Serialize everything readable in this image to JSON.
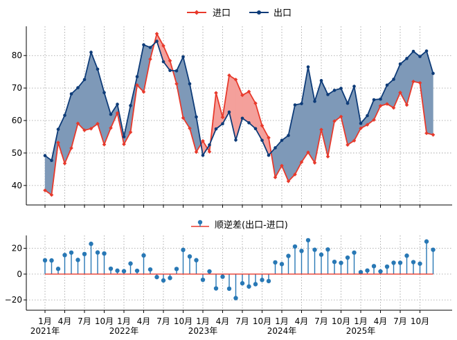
{
  "chart_data": [
    {
      "type": "line",
      "xlabels": [
        "1月\n2021年",
        "4月",
        "7月",
        "10月",
        "1月\n2022年",
        "4月",
        "7月",
        "10月",
        "1月\n2023年",
        "4月",
        "7月",
        "10月",
        "1月\n2024年",
        "4月",
        "7月",
        "10月",
        "1月\n2025年",
        "4月",
        "7月",
        "10月"
      ],
      "ylim": [
        34,
        89
      ],
      "yticks": [
        40,
        50,
        60,
        70,
        80
      ],
      "grid": true,
      "legend_position": "top-center",
      "series": [
        {
          "name": "进口",
          "color": "#e8392b",
          "values": [
            38.5,
            37.1,
            53.2,
            46.8,
            51.5,
            59.1,
            57.0,
            57.5,
            59.0,
            52.6,
            57.7,
            62.3,
            52.7,
            56.4,
            70.9,
            68.8,
            78.9,
            86.7,
            83.0,
            78.4,
            71.3,
            60.8,
            57.6,
            50.3,
            53.7,
            50.4,
            68.5,
            61.0,
            73.9,
            72.6,
            67.8,
            68.9,
            65.3,
            58.4,
            54.7,
            42.5,
            46.1,
            41.3,
            43.4,
            47.2,
            50.2,
            47.0,
            57.2,
            48.9,
            59.8,
            61.2,
            52.5,
            53.8,
            57.6,
            58.7,
            60.2,
            64.5,
            65.1,
            63.9,
            68.6,
            64.8,
            72.0,
            71.6,
            56.1,
            55.6
          ]
        },
        {
          "name": "出口",
          "color": "#0d3b78",
          "values": [
            49.2,
            47.7,
            57.3,
            61.6,
            68.2,
            70.1,
            72.6,
            81.0,
            75.8,
            68.6,
            61.9,
            65.0,
            55.0,
            64.6,
            73.5,
            83.3,
            82.5,
            84.4,
            78.1,
            75.4,
            75.3,
            79.6,
            71.3,
            61.1,
            49.3,
            52.5,
            57.4,
            59.0,
            62.6,
            54.0,
            60.7,
            59.3,
            57.5,
            53.9,
            49.3,
            51.6,
            53.9,
            55.4,
            64.8,
            65.2,
            76.5,
            65.9,
            72.3,
            68.0,
            69.3,
            69.9,
            65.3,
            70.5,
            59.1,
            61.5,
            66.4,
            66.6,
            70.9,
            72.7,
            77.4,
            79.1,
            81.3,
            79.7,
            81.4,
            74.5
          ]
        }
      ],
      "fill_colors": {
        "export_above": "#7e99b8",
        "import_above": "#f4a09b"
      }
    },
    {
      "type": "stem",
      "legend": "顺逆差(出口-进口)",
      "ylim": [
        -28,
        30
      ],
      "yticks": [
        -20,
        0,
        20
      ],
      "grid": true,
      "stem_color": "#2878b5",
      "baseline_color": "#e8392b",
      "values": [
        10.7,
        10.6,
        4.1,
        14.8,
        16.7,
        11.0,
        15.6,
        23.5,
        16.8,
        16.0,
        4.2,
        2.7,
        2.3,
        8.2,
        2.6,
        14.5,
        3.6,
        -2.3,
        -4.9,
        -3.0,
        4.0,
        18.8,
        13.7,
        10.8,
        -4.4,
        2.1,
        -11.1,
        -2.0,
        -11.3,
        -18.6,
        -7.1,
        -9.6,
        -7.8,
        -4.5,
        -5.4,
        9.1,
        7.8,
        14.1,
        21.4,
        18.0,
        26.3,
        18.9,
        15.1,
        19.1,
        9.5,
        8.7,
        12.8,
        16.7,
        1.5,
        2.8,
        6.2,
        2.1,
        5.8,
        8.8,
        8.8,
        14.3,
        9.3,
        8.1,
        25.3,
        18.9
      ]
    }
  ]
}
